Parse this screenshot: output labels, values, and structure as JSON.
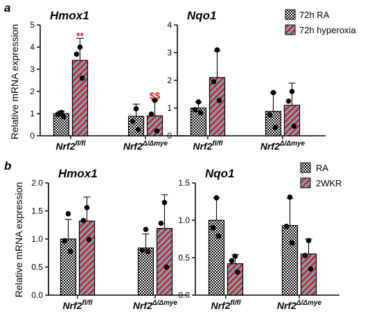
{
  "figure": {
    "panel_a_label": "a",
    "panel_b_label": "b"
  },
  "colors": {
    "ctrl_face": "#ffffff",
    "ctrl_dot": "#000000",
    "treat_bg": "#5fb3c4",
    "treat_stripe": "#e0202a",
    "sig": "#c62828",
    "axis": "#000000"
  },
  "chart_data": [
    {
      "id": "a-hmox1",
      "type": "bar",
      "panel": "a",
      "title": "Hmox1",
      "ylabel": "Relative mRNA expression",
      "ylim": [
        0,
        5
      ],
      "yticks": [
        "0",
        "1",
        "2",
        "3",
        "4",
        "5"
      ],
      "tick_values": [
        0,
        1,
        2,
        3,
        4,
        5
      ],
      "categories": [
        {
          "base": "Nrf2",
          "sup": "fl/fl"
        },
        {
          "base": "Nrf2",
          "sup": "Δ/Δmye"
        }
      ],
      "series": [
        {
          "name": "72h RA",
          "values": [
            1.0,
            0.88
          ],
          "sd": [
            0.12,
            0.55
          ],
          "points": [
            [
              1.05,
              0.97,
              0.86
            ],
            [
              1.22,
              0.65,
              0.28
            ]
          ]
        },
        {
          "name": "72h hyperoxia",
          "values": [
            3.4,
            0.9
          ],
          "sd": [
            1.0,
            0.7
          ],
          "points": [
            [
              4.0,
              3.68,
              2.6
            ],
            [
              1.6,
              0.98,
              0.22
            ]
          ]
        }
      ],
      "annotations": [
        {
          "text": "**",
          "category": 0,
          "series": 1,
          "y": 4.52
        },
        {
          "text": "$$",
          "category": 1,
          "series": 1,
          "y": 1.82
        }
      ]
    },
    {
      "id": "a-nqo1",
      "type": "bar",
      "panel": "a",
      "title": "Nqo1",
      "ylabel": "",
      "ylim": [
        0,
        4
      ],
      "yticks": [
        "0",
        "1",
        "2",
        "3",
        "4"
      ],
      "tick_values": [
        0,
        1,
        2,
        3,
        4
      ],
      "categories": [
        {
          "base": "Nrf2",
          "sup": "fl/fl"
        },
        {
          "base": "Nrf2",
          "sup": "Δ/Δmye"
        }
      ],
      "series": [
        {
          "name": "72h RA",
          "values": [
            1.0,
            0.88
          ],
          "sd": [
            0.22,
            0.67
          ],
          "points": [
            [
              1.22,
              0.94,
              0.84
            ],
            [
              1.56,
              0.75,
              0.3
            ]
          ]
        },
        {
          "name": "72h hyperoxia",
          "values": [
            2.1,
            1.1
          ],
          "sd": [
            0.95,
            0.8
          ],
          "points": [
            [
              3.1,
              1.95,
              1.28
            ],
            [
              1.6,
              1.25,
              0.35
            ]
          ]
        }
      ],
      "annotations": []
    },
    {
      "id": "b-hmox1",
      "type": "bar",
      "panel": "b",
      "title": "Hmox1",
      "ylabel": "Relative mRNA expression",
      "ylim": [
        0,
        2.0
      ],
      "yticks": [
        "0.0",
        "0.5",
        "1.0",
        "1.5",
        "2.0"
      ],
      "tick_values": [
        0,
        0.5,
        1.0,
        1.5,
        2.0
      ],
      "categories": [
        {
          "base": "Nrf2",
          "sup": "fl/fl"
        },
        {
          "base": "Nrf2",
          "sup": "Δ/Δmye"
        }
      ],
      "series": [
        {
          "name": "RA",
          "values": [
            1.0,
            0.84
          ],
          "sd": [
            0.35,
            0.25
          ],
          "points": [
            [
              1.45,
              0.97,
              0.78
            ],
            [
              1.17,
              0.8,
              0.78
            ]
          ]
        },
        {
          "name": "2WKR",
          "values": [
            1.32,
            1.19
          ],
          "sd": [
            0.43,
            0.6
          ],
          "points": [
            [
              1.56,
              1.33,
              0.99
            ],
            [
              1.65,
              1.28,
              0.5
            ]
          ]
        }
      ],
      "annotations": []
    },
    {
      "id": "b-nqo1",
      "type": "bar",
      "panel": "b",
      "title": "Nqo1",
      "ylabel": "",
      "ylim": [
        0,
        1.5
      ],
      "yticks": [
        "0.0",
        "0.5",
        "1.0",
        "1.5"
      ],
      "tick_values": [
        0,
        0.5,
        1.0,
        1.5
      ],
      "categories": [
        {
          "base": "Nrf2",
          "sup": "fl/fl"
        },
        {
          "base": "Nrf2",
          "sup": "Δ/Δmye"
        }
      ],
      "series": [
        {
          "name": "RA",
          "values": [
            1.0,
            0.93
          ],
          "sd": [
            0.3,
            0.36
          ],
          "points": [
            [
              1.3,
              0.9,
              0.79
            ],
            [
              1.31,
              0.92,
              0.7
            ]
          ]
        },
        {
          "name": "2WKR",
          "values": [
            0.42,
            0.55
          ],
          "sd": [
            0.12,
            0.2
          ],
          "points": [
            [
              0.52,
              0.46,
              0.31
            ],
            [
              0.73,
              0.53,
              0.35
            ]
          ]
        }
      ],
      "annotations": []
    }
  ],
  "legends": [
    {
      "panel": "a",
      "entries": [
        "72h RA",
        "72h hyperoxia"
      ]
    },
    {
      "panel": "b",
      "entries": [
        "RA",
        "2WKR"
      ]
    }
  ]
}
